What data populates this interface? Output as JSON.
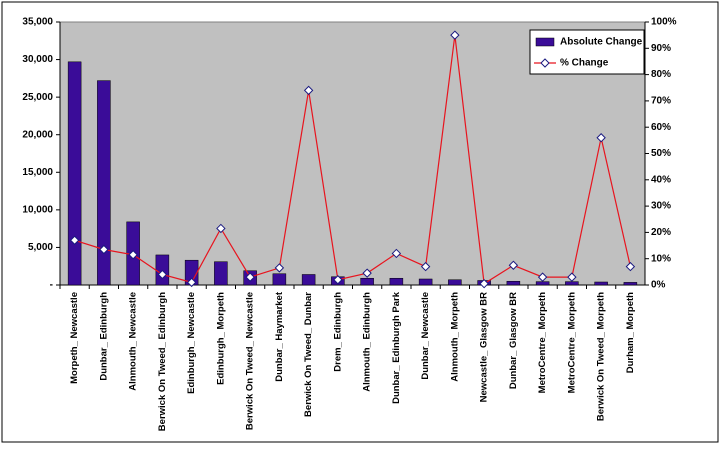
{
  "chart_data": {
    "type": "bar_line",
    "categories": [
      "Morpeth_ Newcastle",
      "Dunbar_ Edinburgh",
      "Alnmouth_ Newcastle",
      "Berwick On Tweed_ Edinburgh",
      "Edinburgh_ Newcastle",
      "Edinburgh_ Morpeth",
      "Berwick On Tweed_ Newcastle",
      "Dunbar_ Haymarket",
      "Berwick On Tweed_ Dunbar",
      "Drem_ Edinburgh",
      "Alnmouth_ Edinburgh",
      "Dunbar_ Edinburgh Park",
      "Dunbar_ Newcastle",
      "Alnmouth_ Morpeth",
      "Newcastle_ Glasgow BR",
      "Dunbar_ Glasgow BR",
      "MetroCentre_ Morpeth",
      "MetroCentre_ Morpeth",
      "Berwick On Tweed_ Morpeth",
      "Durham_ Morpeth"
    ],
    "series": [
      {
        "name": "Absolute Change",
        "color": "#3a0c98",
        "type": "bar",
        "values": [
          29700,
          27200,
          8400,
          4000,
          3300,
          3100,
          1900,
          1500,
          1400,
          1100,
          900,
          900,
          800,
          700,
          600,
          500,
          450,
          450,
          400,
          350
        ]
      },
      {
        "name": "% Change",
        "color": "#e8141e",
        "type": "line",
        "axis": "y2",
        "values": [
          17,
          13.5,
          11.5,
          4,
          1,
          21.5,
          3,
          6.5,
          74,
          2,
          4.5,
          12,
          7,
          95,
          0.5,
          7.5,
          3,
          3,
          56,
          7
        ]
      }
    ],
    "ylim": [
      0,
      35000
    ],
    "yticks": [
      {
        "value": 0,
        "label": "-"
      },
      {
        "value": 5000,
        "label": "5,000"
      },
      {
        "value": 10000,
        "label": "10,000"
      },
      {
        "value": 15000,
        "label": "15,000"
      },
      {
        "value": 20000,
        "label": "20,000"
      },
      {
        "value": 25000,
        "label": "25,000"
      },
      {
        "value": 30000,
        "label": "30,000"
      },
      {
        "value": 35000,
        "label": "35,000"
      }
    ],
    "y2lim": [
      0,
      100
    ],
    "y2ticks": [
      {
        "value": 0,
        "label": "0%"
      },
      {
        "value": 10,
        "label": "10%"
      },
      {
        "value": 20,
        "label": "20%"
      },
      {
        "value": 30,
        "label": "30%"
      },
      {
        "value": 40,
        "label": "40%"
      },
      {
        "value": 50,
        "label": "50%"
      },
      {
        "value": 60,
        "label": "60%"
      },
      {
        "value": 70,
        "label": "70%"
      },
      {
        "value": 80,
        "label": "80%"
      },
      {
        "value": 90,
        "label": "90%"
      },
      {
        "value": 100,
        "label": "100%"
      }
    ],
    "legend": "top-right",
    "plot_background": "#c0c0c0"
  }
}
